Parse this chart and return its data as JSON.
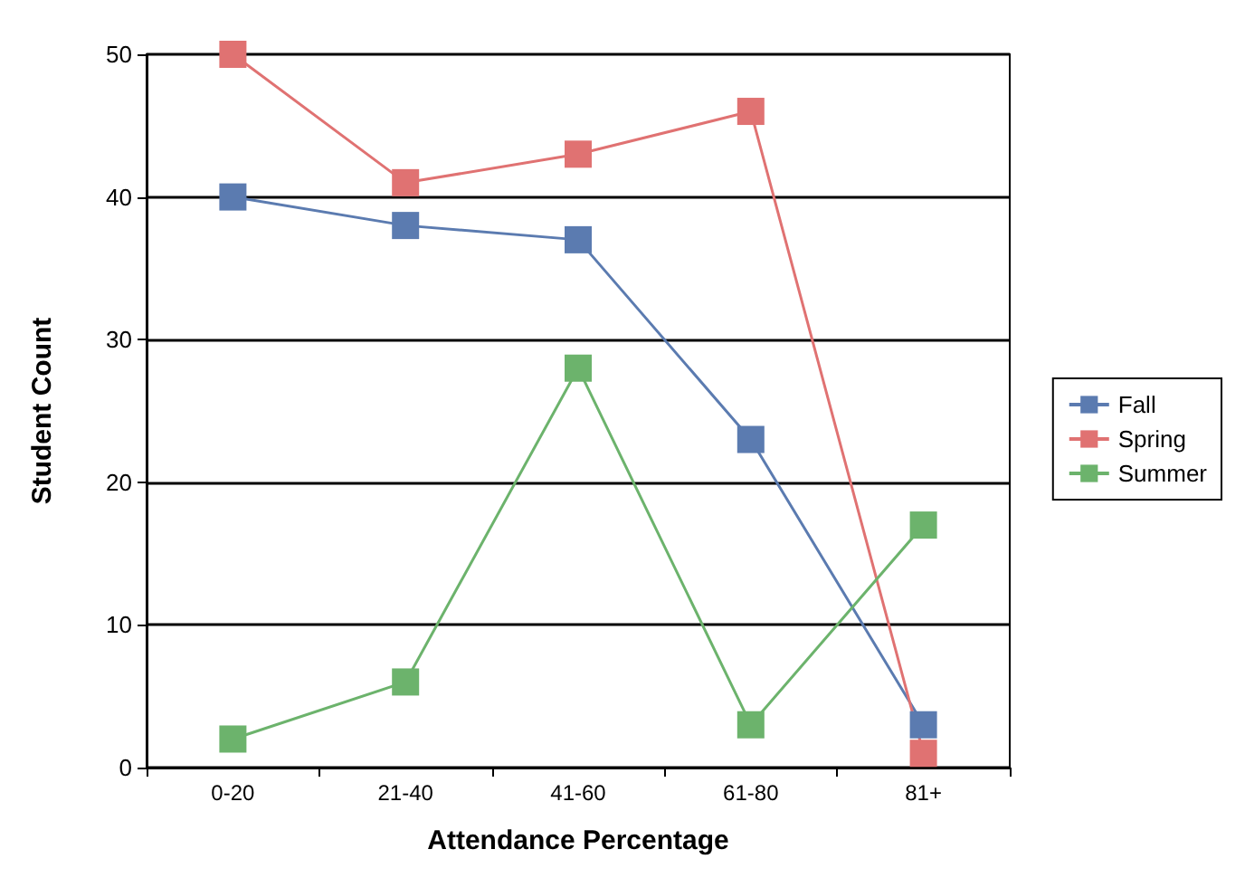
{
  "chart_data": {
    "type": "line",
    "xlabel": "Attendance Percentage",
    "ylabel": "Student Count",
    "categories": [
      "0-20",
      "21-40",
      "41-60",
      "61-80",
      "81+"
    ],
    "series": [
      {
        "name": "Fall",
        "color": "#5b7bb0",
        "values": [
          40,
          38,
          37,
          23,
          3
        ]
      },
      {
        "name": "Spring",
        "color": "#e07272",
        "values": [
          50,
          41,
          43,
          46,
          1
        ]
      },
      {
        "name": "Summer",
        "color": "#6cb36c",
        "values": [
          2,
          6,
          28,
          3,
          17
        ]
      }
    ],
    "ylim": [
      0,
      50
    ],
    "yticks": [
      0,
      10,
      20,
      30,
      40,
      50
    ],
    "grid": "y",
    "legend": "right",
    "marker": "square",
    "line_style": "solid"
  }
}
